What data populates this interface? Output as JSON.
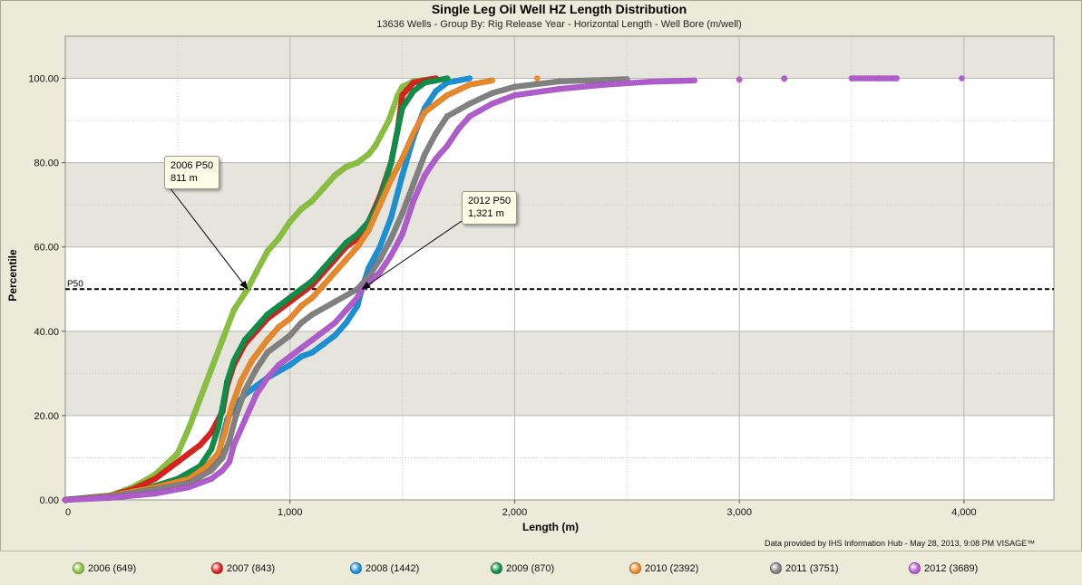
{
  "header": {
    "title": "Single Leg Oil Well HZ Length Distribution",
    "subtitle": "13636 Wells - Group By: Rig Release Year - Horizontal Length - Well Bore (m/well)"
  },
  "footer": {
    "credit": "Data provided by IHS Information Hub - May 28, 2013, 9:08 PM  VISAGE™"
  },
  "reference_line": {
    "label": "P50",
    "y": 50
  },
  "callouts": [
    {
      "year": "2006",
      "line1": "2006 P50",
      "line2": "811 m",
      "target_x": 811,
      "target_y": 50
    },
    {
      "year": "2012",
      "line1": "2012  P50",
      "line2": "1,321 m",
      "target_x": 1321,
      "target_y": 50
    }
  ],
  "legend": [
    {
      "label": "2006  (649)",
      "color": "#8cc63f"
    },
    {
      "label": "2007  (843)",
      "color": "#e0221f"
    },
    {
      "label": "2008  (1442)",
      "color": "#1b95dc"
    },
    {
      "label": "2009  (870)",
      "color": "#11924a"
    },
    {
      "label": "2010  (2392)",
      "color": "#f08c2a"
    },
    {
      "label": "2011  (3751)",
      "color": "#858585"
    },
    {
      "label": "2012  (3689)",
      "color": "#b55fd3"
    }
  ],
  "chart_data": {
    "type": "scatter",
    "title": "Single Leg Oil Well HZ Length Distribution",
    "subtitle": "13636 Wells - Group By: Rig Release Year - Horizontal Length - Well Bore (m/well)",
    "xlabel": "Length (m)",
    "ylabel": "Percentile",
    "xlim": [
      0,
      4400
    ],
    "ylim": [
      0,
      110
    ],
    "x_ticks": [
      0,
      1000,
      2000,
      3000,
      4000
    ],
    "x_tick_labels": [
      "0",
      "1,000",
      "2,000",
      "3,000",
      "4,000"
    ],
    "y_ticks": [
      0,
      20,
      40,
      60,
      80,
      100
    ],
    "y_tick_labels": [
      "0.00",
      "20.00",
      "40.00",
      "60.00",
      "80.00",
      "100.00"
    ],
    "grid": true,
    "legend_position": "bottom",
    "series": [
      {
        "name": "2006  (649)",
        "color": "#8cc63f",
        "points": [
          [
            0,
            0
          ],
          [
            200,
            1
          ],
          [
            300,
            3
          ],
          [
            400,
            6
          ],
          [
            500,
            11
          ],
          [
            550,
            17
          ],
          [
            600,
            24
          ],
          [
            650,
            31
          ],
          [
            700,
            38
          ],
          [
            750,
            45
          ],
          [
            811,
            50
          ],
          [
            850,
            54
          ],
          [
            900,
            59
          ],
          [
            950,
            62
          ],
          [
            1000,
            66
          ],
          [
            1050,
            69
          ],
          [
            1100,
            71
          ],
          [
            1150,
            74
          ],
          [
            1200,
            77
          ],
          [
            1250,
            79
          ],
          [
            1300,
            80
          ],
          [
            1350,
            82
          ],
          [
            1380,
            84
          ],
          [
            1400,
            86
          ],
          [
            1420,
            88
          ],
          [
            1440,
            90
          ],
          [
            1460,
            93
          ],
          [
            1480,
            96
          ],
          [
            1500,
            98
          ],
          [
            1550,
            99.3
          ],
          [
            1650,
            100
          ]
        ]
      },
      {
        "name": "2007  (843)",
        "color": "#e0221f",
        "points": [
          [
            0,
            0
          ],
          [
            200,
            1
          ],
          [
            300,
            2.5
          ],
          [
            400,
            5
          ],
          [
            500,
            9
          ],
          [
            600,
            13
          ],
          [
            650,
            16
          ],
          [
            700,
            21
          ],
          [
            720,
            27
          ],
          [
            750,
            32
          ],
          [
            800,
            37
          ],
          [
            850,
            40
          ],
          [
            900,
            43
          ],
          [
            950,
            45
          ],
          [
            1000,
            47
          ],
          [
            1050,
            49
          ],
          [
            1100,
            51
          ],
          [
            1150,
            54
          ],
          [
            1200,
            57
          ],
          [
            1250,
            60
          ],
          [
            1300,
            62
          ],
          [
            1350,
            66
          ],
          [
            1400,
            72
          ],
          [
            1450,
            80
          ],
          [
            1480,
            88
          ],
          [
            1500,
            96
          ],
          [
            1550,
            99
          ],
          [
            1650,
            100
          ]
        ]
      },
      {
        "name": "2008  (1442)",
        "color": "#1b95dc",
        "points": [
          [
            0,
            0
          ],
          [
            300,
            1.5
          ],
          [
            450,
            3
          ],
          [
            550,
            5
          ],
          [
            620,
            7
          ],
          [
            680,
            10
          ],
          [
            700,
            15
          ],
          [
            720,
            19
          ],
          [
            750,
            22
          ],
          [
            800,
            25
          ],
          [
            850,
            27
          ],
          [
            900,
            29
          ],
          [
            1000,
            32
          ],
          [
            1050,
            34
          ],
          [
            1100,
            35
          ],
          [
            1150,
            37
          ],
          [
            1200,
            39
          ],
          [
            1250,
            42
          ],
          [
            1300,
            46
          ],
          [
            1320,
            50
          ],
          [
            1350,
            55
          ],
          [
            1400,
            60
          ],
          [
            1450,
            67
          ],
          [
            1500,
            77
          ],
          [
            1550,
            86
          ],
          [
            1600,
            93
          ],
          [
            1650,
            97
          ],
          [
            1700,
            99
          ],
          [
            1800,
            100
          ]
        ]
      },
      {
        "name": "2009  (870)",
        "color": "#11924a",
        "points": [
          [
            0,
            0
          ],
          [
            200,
            1
          ],
          [
            350,
            2.5
          ],
          [
            500,
            5
          ],
          [
            600,
            8
          ],
          [
            650,
            12
          ],
          [
            680,
            17
          ],
          [
            700,
            22
          ],
          [
            720,
            28
          ],
          [
            750,
            33
          ],
          [
            800,
            38
          ],
          [
            850,
            41
          ],
          [
            900,
            44
          ],
          [
            950,
            46
          ],
          [
            1000,
            48
          ],
          [
            1050,
            50
          ],
          [
            1100,
            52
          ],
          [
            1150,
            55
          ],
          [
            1200,
            58
          ],
          [
            1250,
            61
          ],
          [
            1300,
            63
          ],
          [
            1350,
            66
          ],
          [
            1400,
            71
          ],
          [
            1450,
            80
          ],
          [
            1480,
            88
          ],
          [
            1500,
            93
          ],
          [
            1550,
            97
          ],
          [
            1600,
            99
          ],
          [
            1700,
            100
          ]
        ]
      },
      {
        "name": "2010  (2392)",
        "color": "#f08c2a",
        "points": [
          [
            0,
            0
          ],
          [
            200,
            1
          ],
          [
            400,
            3
          ],
          [
            550,
            5
          ],
          [
            630,
            8
          ],
          [
            680,
            11
          ],
          [
            710,
            16
          ],
          [
            740,
            22
          ],
          [
            780,
            28
          ],
          [
            830,
            33
          ],
          [
            900,
            38
          ],
          [
            950,
            41
          ],
          [
            1000,
            43
          ],
          [
            1050,
            46
          ],
          [
            1100,
            48
          ],
          [
            1150,
            51
          ],
          [
            1200,
            54
          ],
          [
            1250,
            57
          ],
          [
            1300,
            60
          ],
          [
            1350,
            64
          ],
          [
            1400,
            70
          ],
          [
            1450,
            76
          ],
          [
            1500,
            81
          ],
          [
            1550,
            87
          ],
          [
            1600,
            92
          ],
          [
            1700,
            96
          ],
          [
            1800,
            98.5
          ],
          [
            1900,
            99.5
          ],
          [
            2100,
            100
          ]
        ]
      },
      {
        "name": "2011  (3751)",
        "color": "#858585",
        "points": [
          [
            0,
            0
          ],
          [
            200,
            0.8
          ],
          [
            400,
            2.5
          ],
          [
            550,
            4
          ],
          [
            650,
            7
          ],
          [
            700,
            10
          ],
          [
            730,
            14
          ],
          [
            760,
            20
          ],
          [
            800,
            26
          ],
          [
            850,
            31
          ],
          [
            900,
            35
          ],
          [
            1000,
            39
          ],
          [
            1050,
            42
          ],
          [
            1100,
            44
          ],
          [
            1200,
            47
          ],
          [
            1300,
            50
          ],
          [
            1350,
            53
          ],
          [
            1400,
            57
          ],
          [
            1450,
            62
          ],
          [
            1500,
            68
          ],
          [
            1550,
            75
          ],
          [
            1600,
            82
          ],
          [
            1650,
            87
          ],
          [
            1700,
            91
          ],
          [
            1800,
            94
          ],
          [
            1900,
            96.5
          ],
          [
            2000,
            98
          ],
          [
            2200,
            99.3
          ],
          [
            2500,
            99.8
          ],
          [
            3200,
            100
          ]
        ]
      },
      {
        "name": "2012  (3689)",
        "color": "#b55fd3",
        "points": [
          [
            0,
            0
          ],
          [
            200,
            0.5
          ],
          [
            400,
            1.5
          ],
          [
            550,
            3
          ],
          [
            650,
            5
          ],
          [
            700,
            7
          ],
          [
            730,
            9
          ],
          [
            750,
            13
          ],
          [
            800,
            19
          ],
          [
            850,
            25
          ],
          [
            900,
            29
          ],
          [
            950,
            32
          ],
          [
            1000,
            34
          ],
          [
            1050,
            36
          ],
          [
            1100,
            38
          ],
          [
            1200,
            42
          ],
          [
            1250,
            45
          ],
          [
            1300,
            48
          ],
          [
            1321,
            50
          ],
          [
            1400,
            54
          ],
          [
            1450,
            58
          ],
          [
            1500,
            63
          ],
          [
            1550,
            71
          ],
          [
            1600,
            77
          ],
          [
            1650,
            81
          ],
          [
            1700,
            84
          ],
          [
            1750,
            88
          ],
          [
            1800,
            91
          ],
          [
            1900,
            94
          ],
          [
            2000,
            96
          ],
          [
            2200,
            97.5
          ],
          [
            2400,
            98.5
          ],
          [
            2600,
            99.2
          ],
          [
            2800,
            99.5
          ],
          [
            3000,
            99.7
          ],
          [
            3200,
            99.9
          ],
          [
            3500,
            100
          ],
          [
            3620,
            100
          ],
          [
            3700,
            100
          ],
          [
            3990,
            100
          ]
        ]
      }
    ]
  }
}
